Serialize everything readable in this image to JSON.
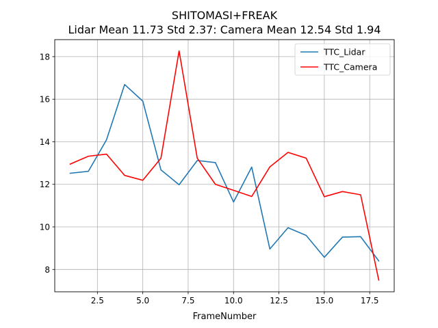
{
  "chart_data": {
    "type": "line",
    "title": "SHITOMASI+FREAK",
    "subtitle": "Lidar Mean 11.73 Std 2.37: Camera Mean 12.54 Std 1.94",
    "xlabel": "FrameNumber",
    "ylabel": "",
    "xlim": [
      0.15,
      18.85
    ],
    "ylim": [
      6.95,
      18.8
    ],
    "xticks": [
      2.5,
      5.0,
      7.5,
      10.0,
      12.5,
      15.0,
      17.5
    ],
    "xtick_labels": [
      "2.5",
      "5.0",
      "7.5",
      "10.0",
      "12.5",
      "15.0",
      "17.5"
    ],
    "yticks": [
      8,
      10,
      12,
      14,
      16,
      18
    ],
    "ytick_labels": [
      "8",
      "10",
      "12",
      "14",
      "16",
      "18"
    ],
    "grid": true,
    "legend_position": "top-right",
    "x": [
      1,
      2,
      3,
      4,
      5,
      6,
      7,
      8,
      9,
      10,
      11,
      12,
      13,
      14,
      15,
      16,
      17,
      18
    ],
    "series": [
      {
        "name": "TTC_Lidar",
        "color": "#1f77b4",
        "values": [
          12.52,
          12.61,
          14.09,
          16.69,
          15.91,
          12.68,
          11.98,
          13.12,
          13.02,
          11.17,
          12.81,
          8.96,
          9.96,
          9.6,
          8.57,
          9.52,
          9.54,
          8.4
        ]
      },
      {
        "name": "TTC_Camera",
        "color": "#ff0000",
        "values": [
          12.95,
          13.32,
          13.42,
          12.42,
          12.19,
          13.23,
          18.27,
          13.23,
          12.0,
          11.72,
          11.43,
          12.82,
          13.5,
          13.23,
          11.42,
          11.66,
          11.51,
          7.5
        ]
      }
    ]
  }
}
